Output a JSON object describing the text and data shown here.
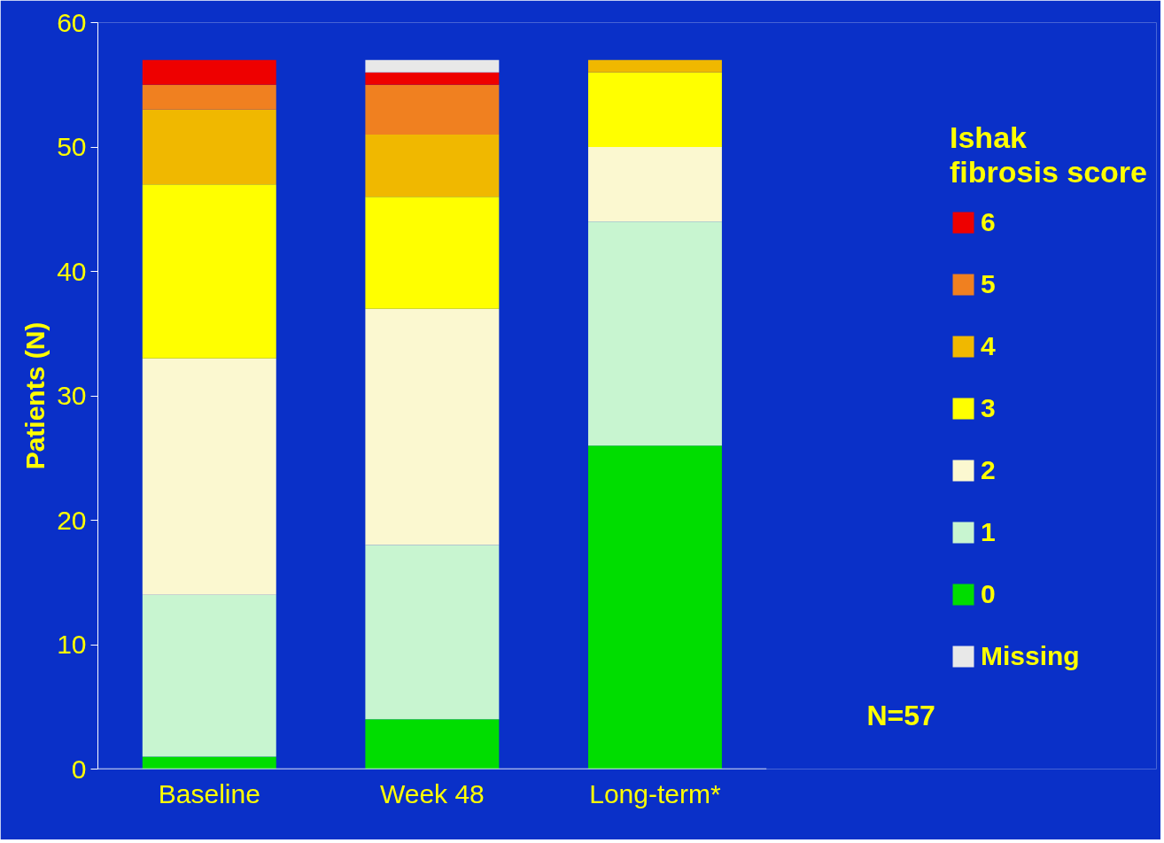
{
  "chart_data": {
    "type": "bar",
    "stacked": true,
    "categories": [
      "Baseline",
      "Week 48",
      "Long-term*"
    ],
    "ylabel": "Patients (N)",
    "legend_title": "Ishak\nfibrosis score",
    "ylim": [
      0,
      60
    ],
    "yticks": [
      0,
      10,
      20,
      30,
      40,
      50,
      60
    ],
    "grid": false,
    "legend": "right",
    "annotations": [
      "N=57"
    ],
    "series": [
      {
        "name": "0",
        "color": "#00dd00",
        "values": [
          1,
          4,
          26
        ]
      },
      {
        "name": "1",
        "color": "#c8f5d0",
        "values": [
          13,
          14,
          18
        ]
      },
      {
        "name": "2",
        "color": "#fbf8d0",
        "values": [
          19,
          19,
          6
        ]
      },
      {
        "name": "3",
        "color": "#ffff00",
        "values": [
          14,
          9,
          6
        ]
      },
      {
        "name": "4",
        "color": "#f0b800",
        "values": [
          6,
          5,
          1
        ]
      },
      {
        "name": "5",
        "color": "#f08020",
        "values": [
          2,
          4,
          0
        ]
      },
      {
        "name": "6",
        "color": "#ee0000",
        "values": [
          2,
          1,
          0
        ]
      },
      {
        "name": "Missing",
        "color": "#e8e8e8",
        "values": [
          0,
          1,
          0
        ]
      }
    ]
  }
}
